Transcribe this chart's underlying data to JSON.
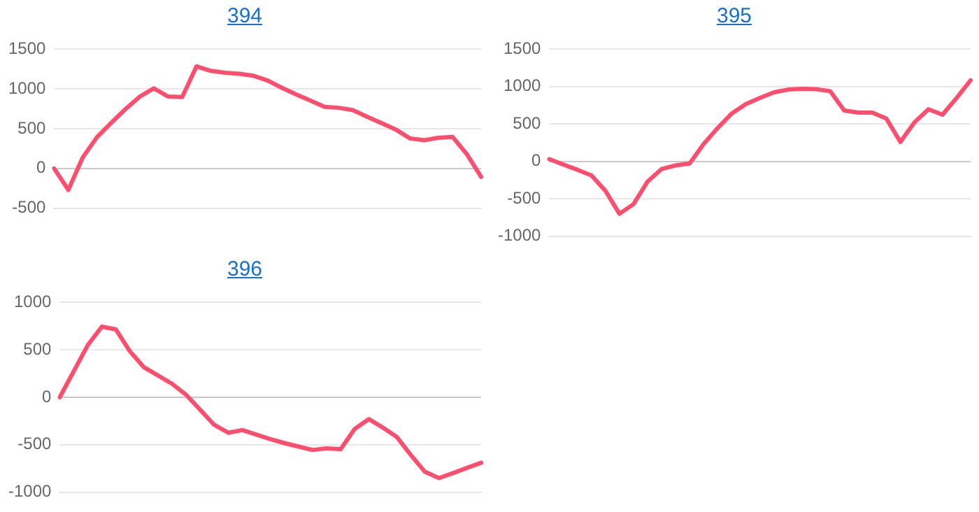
{
  "chart_data": [
    {
      "type": "line",
      "title": "394",
      "categories": [
        null,
        null,
        null,
        null,
        null,
        null,
        null,
        null,
        null,
        null,
        null,
        null,
        null,
        null,
        null,
        null,
        null,
        null,
        null,
        null,
        null,
        null,
        null,
        null,
        null,
        null,
        null,
        null,
        null,
        null,
        null
      ],
      "series": [
        {
          "color": "#ff4d6d",
          "values": [
            0,
            -270,
            135,
            391,
            571,
            744,
            901,
            1007,
            906,
            898,
            1284,
            1228,
            1204,
            1191,
            1166,
            1107,
            1015,
            931,
            854,
            776,
            763,
            733,
            649,
            570,
            490,
            378,
            355,
            386,
            396,
            179,
            -106
          ]
        }
      ],
      "ylim": [
        -500,
        1500
      ],
      "yticks": [
        -500,
        0,
        500,
        1000,
        1500
      ],
      "grid": "y",
      "legend": false,
      "tick_labels": "y",
      "marker": "none",
      "line_style": "solid"
    },
    {
      "type": "line",
      "title": "395",
      "categories": [
        null,
        null,
        null,
        null,
        null,
        null,
        null,
        null,
        null,
        null,
        null,
        null,
        null,
        null,
        null,
        null,
        null,
        null,
        null,
        null,
        null,
        null,
        null,
        null,
        null,
        null,
        null,
        null,
        null,
        null,
        null
      ],
      "series": [
        {
          "color": "#ff4d6d",
          "values": [
            30,
            -43,
            -112,
            -187,
            -393,
            -701,
            -572,
            -271,
            -102,
            -54,
            -28,
            234,
            448,
            641,
            767,
            848,
            924,
            960,
            970,
            966,
            939,
            680,
            652,
            652,
            573,
            259,
            522,
            697,
            624,
            848,
            1085
          ]
        }
      ],
      "ylim": [
        -1000,
        1500
      ],
      "yticks": [
        -1000,
        -500,
        0,
        500,
        1000,
        1500
      ],
      "grid": "y",
      "legend": false,
      "tick_labels": "y",
      "marker": "none",
      "line_style": "solid"
    },
    {
      "type": "line",
      "title": "396",
      "categories": [
        null,
        null,
        null,
        null,
        null,
        null,
        null,
        null,
        null,
        null,
        null,
        null,
        null,
        null,
        null,
        null,
        null,
        null,
        null,
        null,
        null,
        null,
        null,
        null,
        null,
        null,
        null,
        null,
        null,
        null,
        null
      ],
      "series": [
        {
          "color": "#ff4d6d",
          "values": [
            0,
            275,
            550,
            745,
            715,
            484,
            316,
            229,
            142,
            26,
            -132,
            -291,
            -374,
            -346,
            -393,
            -441,
            -483,
            -520,
            -556,
            -539,
            -548,
            -334,
            -230,
            -319,
            -419,
            -609,
            -786,
            -852,
            -799,
            -744,
            -690
          ]
        }
      ],
      "ylim": [
        -1000,
        1000
      ],
      "yticks": [
        -1000,
        -500,
        0,
        500,
        1000
      ],
      "grid": "y",
      "legend": false,
      "tick_labels": "y",
      "marker": "none",
      "line_style": "solid"
    }
  ]
}
